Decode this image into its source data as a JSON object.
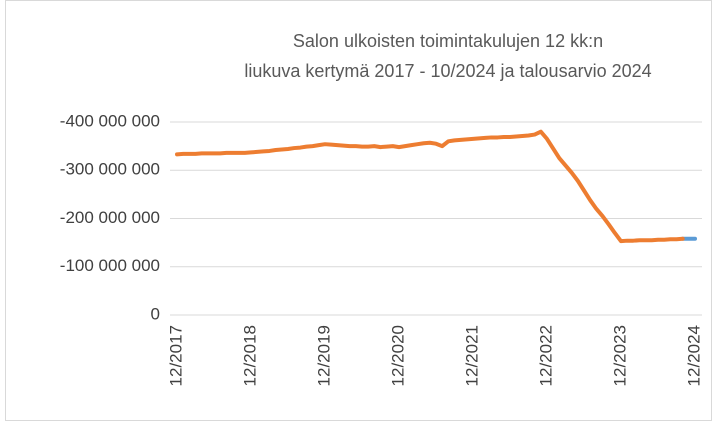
{
  "chart_data": {
    "type": "line",
    "title": [
      "Salon ulkoisten toimintakulujen 12 kk:n",
      "liukuva kertymä 2017 - 10/2024 ja talousarvio 2024"
    ],
    "categories": [
      "12/2017",
      null,
      null,
      null,
      null,
      null,
      null,
      null,
      null,
      null,
      null,
      null,
      "12/2018",
      null,
      null,
      null,
      null,
      null,
      null,
      null,
      null,
      null,
      null,
      null,
      "12/2019",
      null,
      null,
      null,
      null,
      null,
      null,
      null,
      null,
      null,
      null,
      null,
      "12/2020",
      null,
      null,
      null,
      null,
      null,
      null,
      null,
      null,
      null,
      null,
      null,
      "12/2021",
      null,
      null,
      null,
      null,
      null,
      null,
      null,
      null,
      null,
      null,
      null,
      "12/2022",
      null,
      null,
      null,
      null,
      null,
      null,
      null,
      null,
      null,
      null,
      null,
      "12/2023",
      null,
      null,
      null,
      null,
      null,
      null,
      null,
      null,
      null,
      null,
      null,
      "12/2024"
    ],
    "series": [
      {
        "color": "#5b9bd5",
        "values": [
          null,
          null,
          null,
          null,
          null,
          null,
          null,
          null,
          null,
          null,
          null,
          null,
          null,
          null,
          null,
          null,
          null,
          null,
          null,
          null,
          null,
          null,
          null,
          null,
          null,
          null,
          null,
          null,
          null,
          null,
          null,
          null,
          null,
          null,
          null,
          null,
          null,
          null,
          null,
          null,
          null,
          null,
          null,
          null,
          null,
          null,
          null,
          null,
          null,
          null,
          null,
          null,
          null,
          null,
          null,
          null,
          null,
          null,
          null,
          null,
          null,
          null,
          null,
          null,
          null,
          null,
          null,
          null,
          null,
          null,
          null,
          null,
          null,
          null,
          null,
          null,
          null,
          null,
          null,
          null,
          null,
          null,
          -158000000,
          -158000000,
          -158000000
        ]
      },
      {
        "color": "#ed7d31",
        "values": [
          -333000000,
          -334000000,
          -334000000,
          -334000000,
          -335000000,
          -335000000,
          -335000000,
          -335000000,
          -336000000,
          -336000000,
          -336000000,
          -336000000,
          -337000000,
          -338000000,
          -339000000,
          -340000000,
          -342000000,
          -343000000,
          -344000000,
          -346000000,
          -347000000,
          -349000000,
          -350000000,
          -352000000,
          -354000000,
          -353000000,
          -352000000,
          -351000000,
          -350000000,
          -350000000,
          -349000000,
          -349000000,
          -350000000,
          -348000000,
          -349000000,
          -350000000,
          -348000000,
          -350000000,
          -352000000,
          -354000000,
          -356000000,
          -357000000,
          -355000000,
          -350000000,
          -360000000,
          -362000000,
          -363000000,
          -364000000,
          -365000000,
          -366000000,
          -367000000,
          -368000000,
          -368000000,
          -369000000,
          -369000000,
          -370000000,
          -371000000,
          -372000000,
          -374000000,
          -380000000,
          -365000000,
          -345000000,
          -325000000,
          -310000000,
          -295000000,
          -278000000,
          -258000000,
          -238000000,
          -220000000,
          -205000000,
          -188000000,
          -170000000,
          -153000000,
          -154000000,
          -154000000,
          -155000000,
          -155000000,
          -155000000,
          -156000000,
          -156000000,
          -157000000,
          -157000000,
          -158000000,
          null,
          null
        ]
      }
    ],
    "ylim": [
      0,
      -400000000
    ],
    "yticks": [
      0,
      {
        "value": -100000000,
        "label": "-100 000 000"
      },
      {
        "value": -200000000,
        "label": "-200 000 000"
      },
      {
        "value": -300000000,
        "label": "-300 000 000"
      },
      {
        "value": -400000000,
        "label": "-400 000 000"
      }
    ],
    "grid": true
  }
}
